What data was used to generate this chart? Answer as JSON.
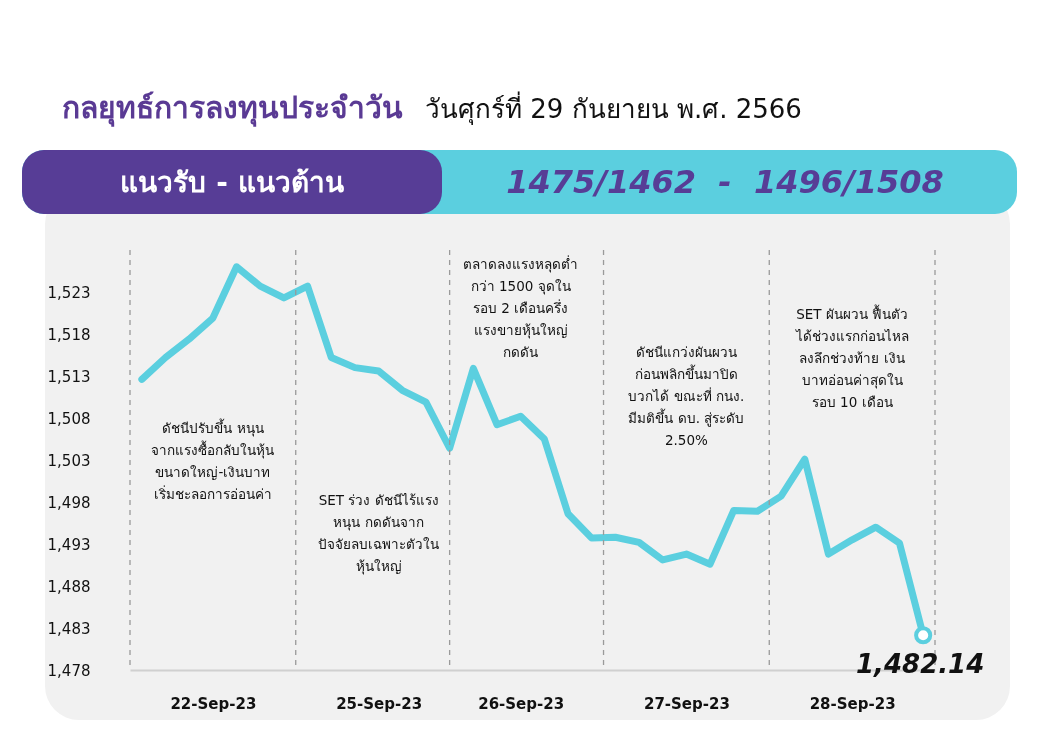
{
  "chart_data": {
    "type": "line",
    "title": "กลยุทธ์การลงทุนประจำวัน",
    "subtitle": "วันศุกร์ที่ 29 กันยายน พ.ศ. 2566",
    "annotations": [
      "แนวรับ - แนวต้าน",
      "1475/1462  -  1496/1508",
      "ดัชนีปรับขึ้น หนุน\nจากแรงซื้อกลับในหุ้น\nขนาดใหญ่-เงินบาท\nเริ่มชะลอการอ่อนค่า",
      "SET ร่วง ดัชนีไร้แรง\nหนุน กดดันจาก\nปัจจัยลบเฉพาะตัวใน\nหุ้นใหญ่",
      "ตลาดลงแรงหลุดต่ำ\nกว่า 1500 จุดใน\nรอบ 2 เดือนครึ่ง\nแรงขายหุ้นใหญ่\nกดดัน",
      "ดัชนีแกว่งผันผวน\nก่อนพลิกขึ้นมาปิด\nบวกได้ ขณะที่ กนง.\nมีมติขึ้น ดบ. สู่ระดับ\n2.50%",
      "SET ผันผวน ฟื้นตัว\nได้ช่วงแรกก่อนไหล\nลงลึกช่วงท้าย เงิน\nบาทอ่อนค่าสุดใน\nรอบ 10 เดือน"
    ],
    "categories": [
      null,
      null,
      null,
      "22-Sep-23",
      null,
      null,
      null,
      null,
      null,
      null,
      "25-Sep-23",
      null,
      null,
      null,
      null,
      null,
      "26-Sep-23",
      null,
      null,
      null,
      null,
      null,
      null,
      "27-Sep-23",
      null,
      null,
      null,
      null,
      null,
      null,
      "28-Sep-23",
      null,
      null,
      null
    ],
    "values": [
      1512.6,
      1515.2,
      1517.4,
      1519.9,
      1526.0,
      1523.7,
      1522.3,
      1523.7,
      1515.2,
      1514.0,
      1513.6,
      1511.3,
      1509.9,
      1504.4,
      1513.9,
      1507.2,
      1508.2,
      1505.5,
      1496.6,
      1493.7,
      1493.8,
      1493.2,
      1491.1,
      1491.8,
      1490.6,
      1497.0,
      1496.9,
      1498.7,
      1503.1,
      1491.8,
      1493.5,
      1495.0,
      1493.1,
      1482.14
    ],
    "value_labels": [
      null,
      null,
      null,
      null,
      null,
      null,
      null,
      null,
      null,
      null,
      null,
      null,
      null,
      null,
      null,
      null,
      null,
      null,
      null,
      null,
      null,
      null,
      null,
      null,
      null,
      null,
      null,
      null,
      null,
      null,
      null,
      null,
      null,
      "1,482.14"
    ],
    "color": "#5bcfdf",
    "ylim": [
      1478,
      1528
    ],
    "yticks": [
      {
        "value": 1478,
        "label": "1,478"
      },
      {
        "value": 1483,
        "label": "1,483"
      },
      {
        "value": 1488,
        "label": "1,488"
      },
      {
        "value": 1493,
        "label": "1,493"
      },
      {
        "value": 1498,
        "label": "1,498"
      },
      {
        "value": 1503,
        "label": "1,503"
      },
      {
        "value": 1508,
        "label": "1,508"
      },
      {
        "value": 1513,
        "label": "1,513"
      },
      {
        "value": 1518,
        "label": "1,518"
      },
      {
        "value": 1523,
        "label": "1,523"
      }
    ]
  }
}
